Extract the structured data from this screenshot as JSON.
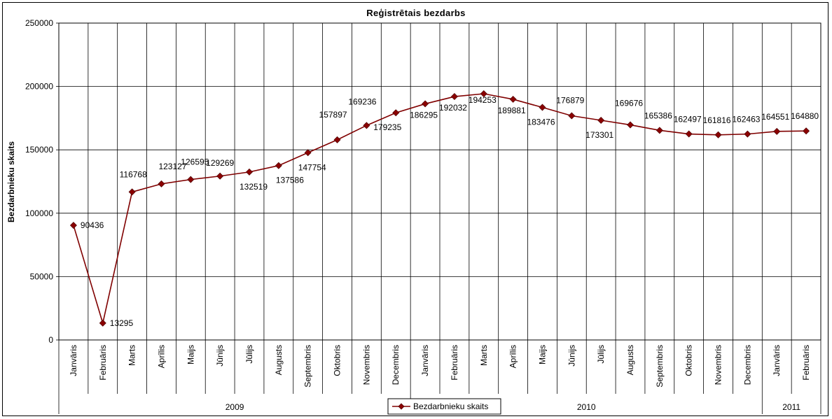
{
  "chart_data": {
    "type": "line",
    "title": "Reģistrētais bezdarbs",
    "ylabel": "Bezdarbnieku skaits",
    "xlabel": "",
    "ylim": [
      0,
      250000
    ],
    "yticks": [
      0,
      50000,
      100000,
      150000,
      200000,
      250000
    ],
    "ytick_labels": [
      "0",
      "50000",
      "100000",
      "150000",
      "200000",
      "250000"
    ],
    "grid": true,
    "legend_position": "bottom-center",
    "categories": [
      "Janvāris",
      "Februāris",
      "Marts",
      "Aprīlis",
      "Maijs",
      "Jūnijs",
      "Jūlijs",
      "Augusts",
      "Septembris",
      "Oktobris",
      "Novembris",
      "Decembris",
      "Janvāris",
      "Februāris",
      "Marts",
      "Aprīlis",
      "Maijs",
      "Jūnijs",
      "Jūlijs",
      "Augusts",
      "Septembris",
      "Oktobris",
      "Novembris",
      "Decembris",
      "Janvāris",
      "Februāris"
    ],
    "year_groups": [
      {
        "label": "2009",
        "count": 12
      },
      {
        "label": "2010",
        "count": 12
      },
      {
        "label": "2011",
        "count": 2
      }
    ],
    "series": [
      {
        "name": "Bezdarbnieku skaits",
        "color": "#800000",
        "marker_color": "#8b0000",
        "values": [
          90436,
          13295,
          116768,
          123127,
          126595,
          129269,
          132519,
          137586,
          147754,
          157897,
          169236,
          179235,
          186295,
          192032,
          194253,
          189881,
          183476,
          176879,
          173301,
          169676,
          165386,
          162497,
          161816,
          162463,
          164551,
          164880
        ],
        "value_labels": [
          "90436",
          "13295",
          "116768",
          "123127",
          "126595",
          "129269",
          "132519",
          "137586",
          "147754",
          "157897",
          "169236",
          "179235",
          "186295",
          "192032",
          "194253",
          "189881",
          "183476",
          "176879",
          "173301",
          "169676",
          "165386",
          "162497",
          "161816",
          "162463",
          "164551",
          "164880"
        ]
      }
    ]
  },
  "colors": {
    "line": "#800000",
    "marker": "#8b0000",
    "grid": "#000000"
  }
}
